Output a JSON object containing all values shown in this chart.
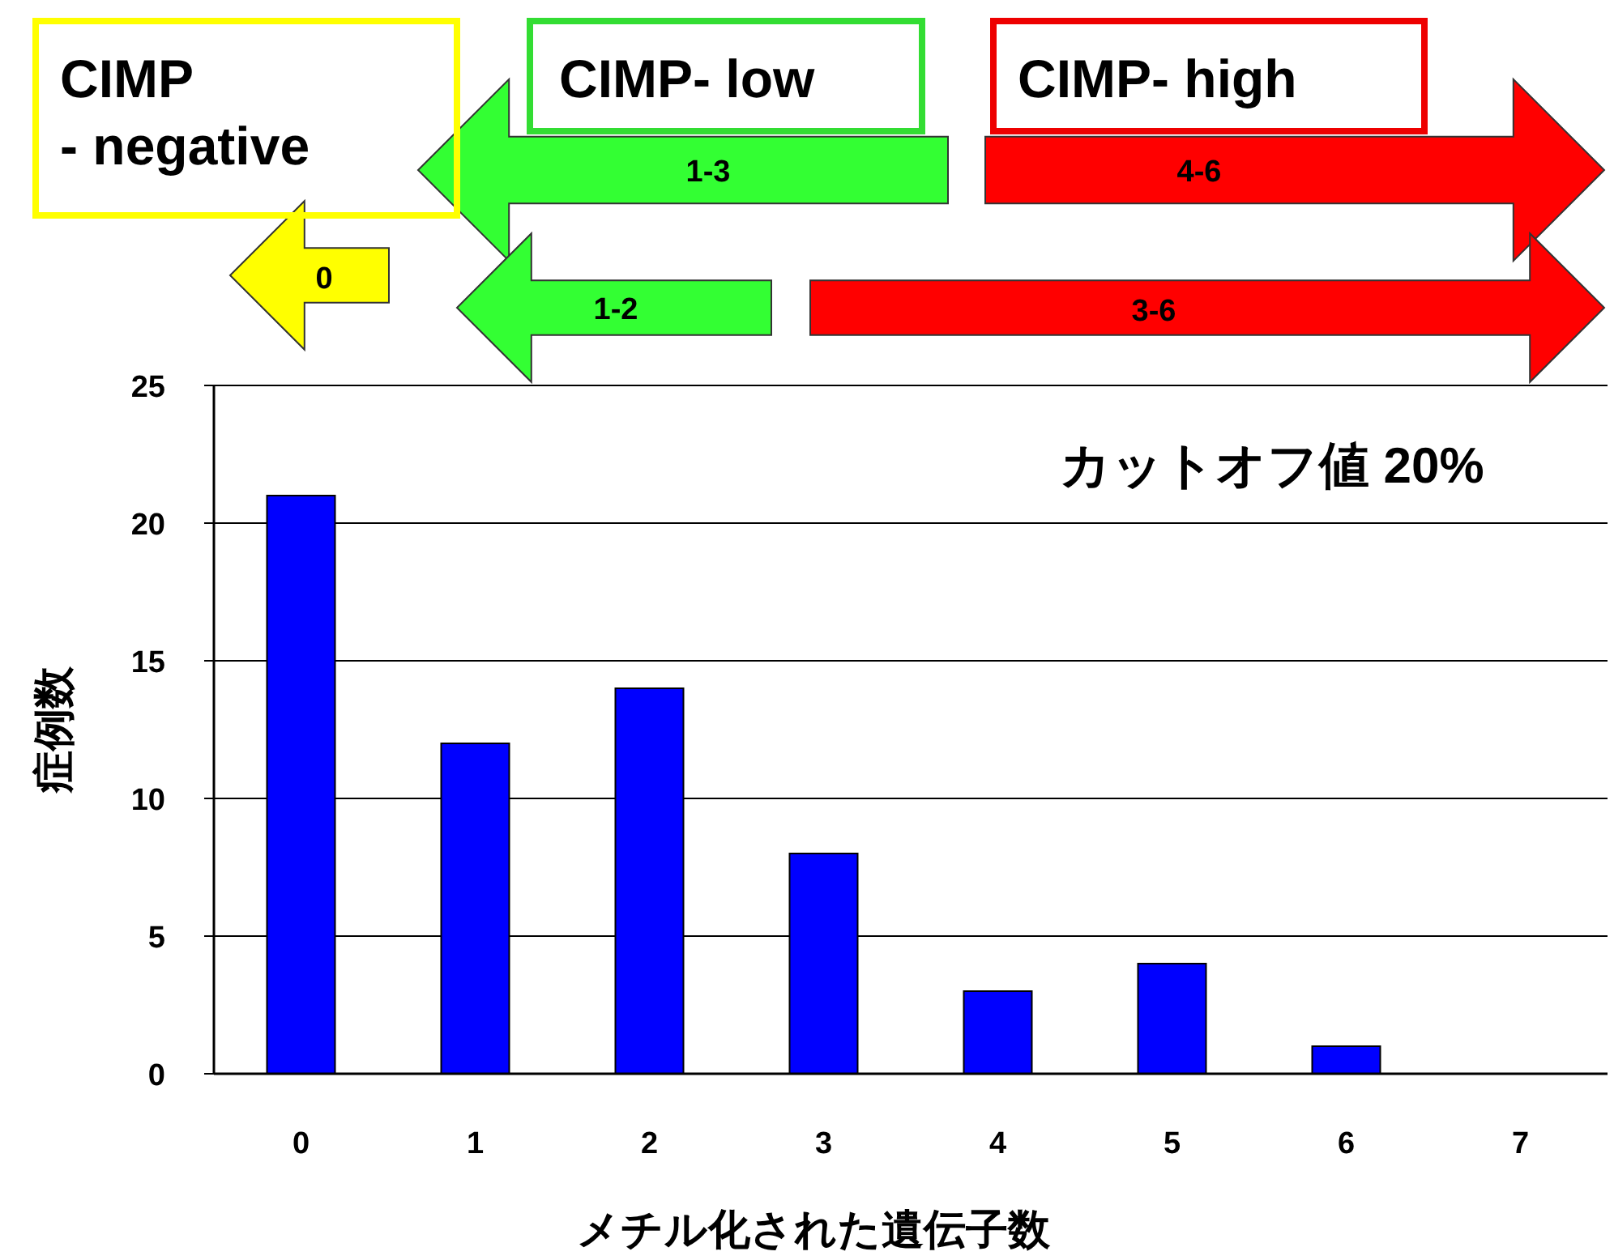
{
  "chart_data": {
    "type": "bar",
    "xlabel": "メチル化された遺伝子数",
    "ylabel": "症例数",
    "categories": [
      "0",
      "1",
      "2",
      "3",
      "4",
      "5",
      "6",
      "7"
    ],
    "values": [
      21,
      12,
      14,
      8,
      3,
      4,
      1,
      0
    ],
    "color": "#0000ff",
    "ylim": [
      0,
      25
    ],
    "yticks": [
      0,
      5,
      10,
      15,
      20,
      25
    ],
    "grid": "y",
    "annotations": [
      "CIMP\n- negative",
      "CIMP- low",
      "CIMP- high",
      "0",
      "1-3",
      "4-6",
      "1-2",
      "3-6",
      "カットオフ値  20%"
    ]
  }
}
